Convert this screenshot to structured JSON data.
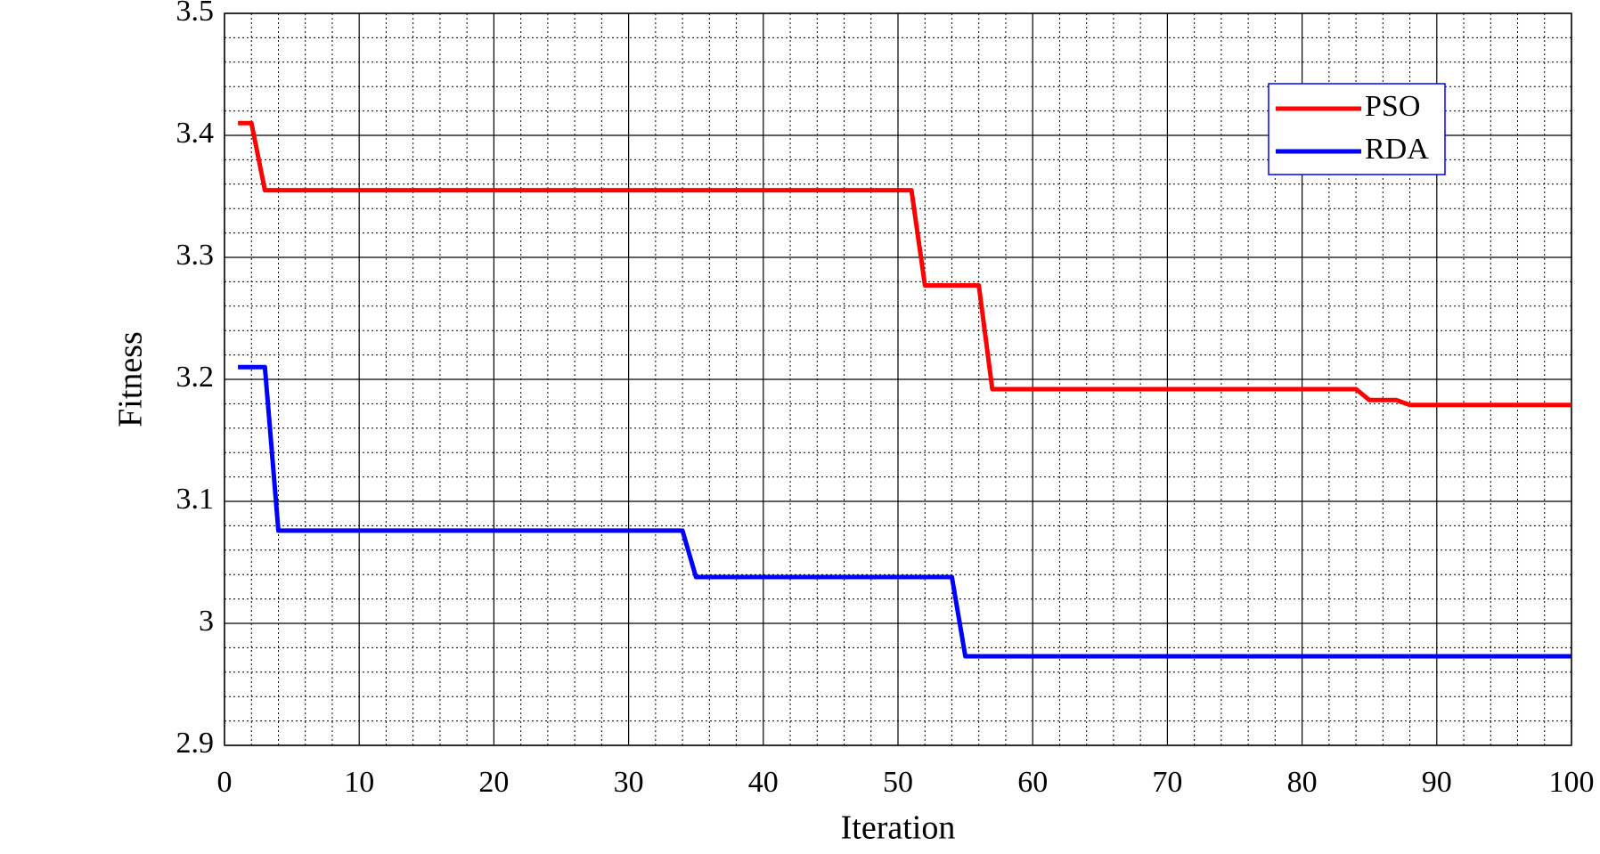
{
  "chart_data": {
    "type": "line",
    "x_label": "Iteration",
    "y_label": "Fitness",
    "x": [
      1,
      2,
      3,
      4,
      34,
      35,
      51,
      52,
      54,
      55,
      56,
      57,
      84,
      85,
      87,
      88,
      100
    ],
    "series": [
      {
        "name": "PSO",
        "color": "#ff0000",
        "values": [
          3.41,
          3.41,
          3.355,
          3.355,
          3.355,
          3.355,
          3.355,
          3.277,
          3.277,
          3.277,
          3.277,
          3.192,
          3.192,
          3.183,
          3.183,
          3.179,
          3.179
        ]
      },
      {
        "name": "RDA",
        "color": "#0000ff",
        "values": [
          3.21,
          3.21,
          3.21,
          3.076,
          3.076,
          3.038,
          3.038,
          3.038,
          3.038,
          2.973,
          2.973,
          2.973,
          2.973,
          2.973,
          2.973,
          2.973,
          2.973
        ]
      }
    ],
    "xlim": [
      0,
      100
    ],
    "xticks": [
      0,
      10,
      20,
      30,
      40,
      50,
      60,
      70,
      80,
      90,
      100
    ],
    "ylim": [
      2.9,
      3.5
    ],
    "yticks": [
      2.9,
      3,
      3.1,
      3.2,
      3.3,
      3.4,
      3.5
    ],
    "grid": true,
    "minor_grid": true,
    "legend": "upper right"
  }
}
